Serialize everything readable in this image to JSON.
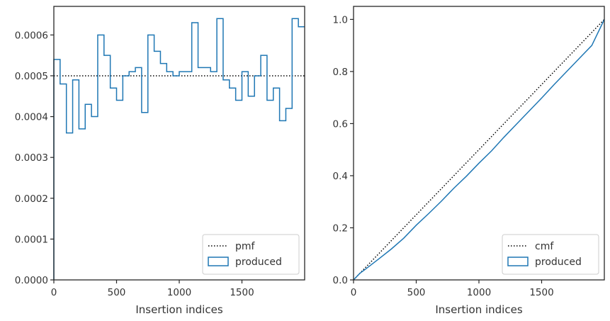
{
  "chart_data": [
    {
      "type": "step",
      "xlabel": "Insertion indices",
      "ylabel": "",
      "xlim": [
        0,
        2000
      ],
      "ylim": [
        0,
        0.00067
      ],
      "xticks": [
        0,
        500,
        1000,
        1500
      ],
      "yticks": [
        0,
        0.0001,
        0.0002,
        0.0003,
        0.0004,
        0.0005,
        0.0006
      ],
      "ytick_labels": [
        "0.0000",
        "0.0001",
        "0.0002",
        "0.0003",
        "0.0004",
        "0.0005",
        "0.0006"
      ],
      "legend": {
        "placement": "lower right",
        "entries": [
          "pmf",
          "produced"
        ]
      },
      "series": [
        {
          "name": "pmf",
          "style": "dotted",
          "color": "#000000",
          "x": [
            0,
            2000
          ],
          "y": [
            0.0005,
            0.0005
          ]
        },
        {
          "name": "produced",
          "style": "step",
          "color": "#1f77b4",
          "bin_width": 50,
          "values": [
            0.00054,
            0.00048,
            0.00036,
            0.00049,
            0.00037,
            0.00043,
            0.0004,
            0.0006,
            0.00055,
            0.00047,
            0.00044,
            0.0005,
            0.00051,
            0.00052,
            0.00041,
            0.0006,
            0.00056,
            0.00053,
            0.00051,
            0.0005,
            0.00051,
            0.00051,
            0.00063,
            0.00052,
            0.00052,
            0.00051,
            0.00064,
            0.00049,
            0.00047,
            0.00044,
            0.00051,
            0.00045,
            0.0005,
            0.00055,
            0.00044,
            0.00047,
            0.00039,
            0.00042,
            0.00064,
            0.00062
          ]
        }
      ]
    },
    {
      "type": "step",
      "xlabel": "Insertion indices",
      "ylabel": "",
      "xlim": [
        0,
        2000
      ],
      "ylim": [
        0,
        1.05
      ],
      "xticks": [
        0,
        500,
        1000,
        1500
      ],
      "yticks": [
        0,
        0.2,
        0.4,
        0.6,
        0.8,
        1.0
      ],
      "ytick_labels": [
        "0.0",
        "0.2",
        "0.4",
        "0.6",
        "0.8",
        "1.0"
      ],
      "legend": {
        "placement": "lower right",
        "entries": [
          "cmf",
          "produced"
        ]
      },
      "series": [
        {
          "name": "cmf",
          "style": "dotted",
          "color": "#000000",
          "x": [
            0,
            2000
          ],
          "y": [
            0,
            1.0
          ]
        },
        {
          "name": "produced",
          "style": "step",
          "color": "#1f77b4",
          "x": [
            0,
            50,
            100,
            200,
            300,
            400,
            500,
            600,
            700,
            800,
            900,
            1000,
            1100,
            1200,
            1300,
            1400,
            1500,
            1600,
            1700,
            1800,
            1900,
            2000
          ],
          "y": [
            0,
            0.025,
            0.043,
            0.08,
            0.118,
            0.16,
            0.21,
            0.255,
            0.302,
            0.352,
            0.398,
            0.448,
            0.495,
            0.548,
            0.598,
            0.648,
            0.698,
            0.75,
            0.8,
            0.85,
            0.9,
            1.0
          ]
        }
      ]
    }
  ]
}
